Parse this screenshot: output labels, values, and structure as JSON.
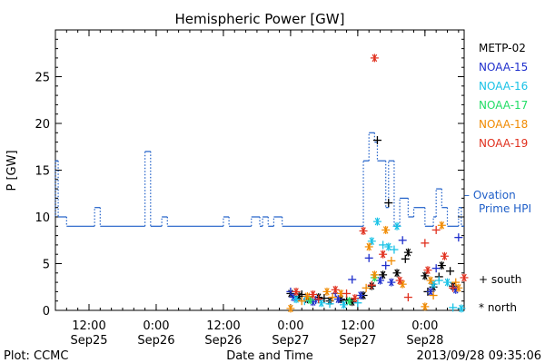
{
  "chart_data": {
    "type": "scatter",
    "title": "Hemispheric Power [GW]",
    "xlabel": "Date and Time",
    "ylabel": "P [GW]",
    "xlim": [
      "2013-09-25T06:00",
      "2013-09-28T07:00"
    ],
    "ylim": [
      0,
      30
    ],
    "x_ticks": [
      {
        "at": "2013-09-25T12:00",
        "time": "12:00",
        "day": "Sep25"
      },
      {
        "at": "2013-09-26T00:00",
        "time": "0:00",
        "day": "Sep26"
      },
      {
        "at": "2013-09-26T12:00",
        "time": "12:00",
        "day": "Sep26"
      },
      {
        "at": "2013-09-27T00:00",
        "time": "0:00",
        "day": "Sep27"
      },
      {
        "at": "2013-09-27T12:00",
        "time": "12:00",
        "day": "Sep27"
      },
      {
        "at": "2013-09-28T00:00",
        "time": "0:00",
        "day": "Sep28"
      }
    ],
    "y_ticks": [
      0,
      5,
      10,
      15,
      20,
      25
    ],
    "footer_left": "Plot: CCMC",
    "footer_right": "2013/09/28 09:35:06",
    "satellites": [
      {
        "name": "METP-02",
        "color": "#000000"
      },
      {
        "name": "NOAA-15",
        "color": "#1f2fcc"
      },
      {
        "name": "NOAA-16",
        "color": "#19c2e6"
      },
      {
        "name": "NOAA-17",
        "color": "#22dd66"
      },
      {
        "name": "NOAA-18",
        "color": "#f08a00"
      },
      {
        "name": "NOAA-19",
        "color": "#e0301e"
      }
    ],
    "ovation": {
      "label_line1": "– Ovation",
      "label_line2": "Prime HPI",
      "color": "#1f5fc8",
      "steps": [
        [
          "2013-09-25T06:00",
          16
        ],
        [
          "2013-09-25T06:30",
          10
        ],
        [
          "2013-09-25T08:00",
          9
        ],
        [
          "2013-09-25T13:00",
          11
        ],
        [
          "2013-09-25T14:00",
          9
        ],
        [
          "2013-09-25T22:00",
          17
        ],
        [
          "2013-09-25T23:00",
          9
        ],
        [
          "2013-09-26T01:00",
          10
        ],
        [
          "2013-09-26T02:00",
          9
        ],
        [
          "2013-09-26T12:00",
          10
        ],
        [
          "2013-09-26T13:00",
          9
        ],
        [
          "2013-09-26T17:00",
          10
        ],
        [
          "2013-09-26T18:30",
          9
        ],
        [
          "2013-09-26T19:00",
          10
        ],
        [
          "2013-09-26T20:00",
          9
        ],
        [
          "2013-09-26T21:00",
          10
        ],
        [
          "2013-09-26T22:30",
          9
        ],
        [
          "2013-09-27T13:00",
          16
        ],
        [
          "2013-09-27T14:00",
          19
        ],
        [
          "2013-09-27T15:00",
          18
        ],
        [
          "2013-09-27T15:30",
          16
        ],
        [
          "2013-09-27T17:00",
          11
        ],
        [
          "2013-09-27T17:30",
          16
        ],
        [
          "2013-09-27T18:30",
          9
        ],
        [
          "2013-09-27T19:30",
          12
        ],
        [
          "2013-09-27T21:00",
          10
        ],
        [
          "2013-09-27T22:00",
          11
        ],
        [
          "2013-09-28T00:00",
          9
        ],
        [
          "2013-09-28T01:30",
          10
        ],
        [
          "2013-09-28T02:00",
          13
        ],
        [
          "2013-09-28T03:00",
          11
        ],
        [
          "2013-09-28T04:00",
          9
        ],
        [
          "2013-09-28T06:00",
          11
        ],
        [
          "2013-09-28T06:30",
          9
        ],
        [
          "2013-09-28T07:00",
          9
        ]
      ]
    },
    "markers": {
      "south_label": "+ south",
      "north_label": "* north"
    },
    "series": [
      {
        "satellite": "METP-02",
        "hemisphere": "north",
        "points": [
          [
            "2013-09-27T00:00",
            1.8
          ],
          [
            "2013-09-27T01:30",
            1.5
          ],
          [
            "2013-09-27T03:00",
            1.2
          ],
          [
            "2013-09-27T05:00",
            1.4
          ],
          [
            "2013-09-27T07:00",
            1.0
          ],
          [
            "2013-09-27T09:00",
            1.2
          ],
          [
            "2013-09-27T11:00",
            0.9
          ],
          [
            "2013-09-27T13:00",
            1.6
          ],
          [
            "2013-09-27T14:30",
            2.6
          ],
          [
            "2013-09-27T16:30",
            3.8
          ],
          [
            "2013-09-27T19:00",
            4.0
          ],
          [
            "2013-09-27T21:00",
            6.2
          ],
          [
            "2013-09-28T00:00",
            3.7
          ],
          [
            "2013-09-28T01:30",
            2.5
          ],
          [
            "2013-09-28T03:00",
            4.8
          ],
          [
            "2013-09-28T05:00",
            2.6
          ]
        ]
      },
      {
        "satellite": "METP-02",
        "hemisphere": "south",
        "points": [
          [
            "2013-09-27T02:00",
            1.7
          ],
          [
            "2013-09-27T06:00",
            1.3
          ],
          [
            "2013-09-27T10:00",
            1.1
          ],
          [
            "2013-09-27T15:30",
            18.2
          ],
          [
            "2013-09-27T17:30",
            11.5
          ],
          [
            "2013-09-27T20:30",
            5.5
          ],
          [
            "2013-09-28T00:30",
            2.0
          ],
          [
            "2013-09-28T02:30",
            3.6
          ],
          [
            "2013-09-28T04:30",
            4.2
          ]
        ]
      },
      {
        "satellite": "NOAA-15",
        "hemisphere": "north",
        "points": [
          [
            "2013-09-27T00:30",
            1.4
          ],
          [
            "2013-09-27T04:00",
            0.9
          ],
          [
            "2013-09-27T08:30",
            1.2
          ],
          [
            "2013-09-27T12:30",
            1.6
          ],
          [
            "2013-09-27T16:00",
            3.2
          ],
          [
            "2013-09-27T18:00",
            3.0
          ],
          [
            "2013-09-28T01:00",
            2.0
          ],
          [
            "2013-09-28T05:30",
            2.2
          ]
        ]
      },
      {
        "satellite": "NOAA-15",
        "hemisphere": "south",
        "points": [
          [
            "2013-09-27T00:00",
            2.0
          ],
          [
            "2013-09-27T04:30",
            1.1
          ],
          [
            "2013-09-27T08:00",
            1.8
          ],
          [
            "2013-09-27T11:00",
            3.3
          ],
          [
            "2013-09-27T14:00",
            5.6
          ],
          [
            "2013-09-27T17:00",
            4.8
          ],
          [
            "2013-09-27T20:00",
            7.5
          ],
          [
            "2013-09-28T02:00",
            4.5
          ],
          [
            "2013-09-28T06:00",
            7.8
          ]
        ]
      },
      {
        "satellite": "NOAA-16",
        "hemisphere": "north",
        "points": [
          [
            "2013-09-27T01:00",
            1.2
          ],
          [
            "2013-09-27T05:30",
            0.8
          ],
          [
            "2013-09-27T09:30",
            0.6
          ],
          [
            "2013-09-27T14:30",
            7.4
          ],
          [
            "2013-09-27T15:30",
            9.5
          ],
          [
            "2013-09-27T17:30",
            6.8
          ],
          [
            "2013-09-27T19:00",
            9.0
          ],
          [
            "2013-09-28T01:30",
            2.8
          ],
          [
            "2013-09-28T04:00",
            3.0
          ],
          [
            "2013-09-28T06:30",
            0.2
          ]
        ]
      },
      {
        "satellite": "NOAA-16",
        "hemisphere": "south",
        "points": [
          [
            "2013-09-27T02:30",
            1.0
          ],
          [
            "2013-09-27T07:00",
            0.7
          ],
          [
            "2013-09-27T12:00",
            0.8
          ],
          [
            "2013-09-27T16:30",
            7.0
          ],
          [
            "2013-09-27T18:30",
            6.5
          ],
          [
            "2013-09-28T02:30",
            3.2
          ],
          [
            "2013-09-28T05:00",
            0.3
          ]
        ]
      },
      {
        "satellite": "NOAA-17",
        "hemisphere": "north",
        "points": [
          [
            "2013-09-27T03:30",
            1.1
          ],
          [
            "2013-09-27T10:30",
            1.0
          ],
          [
            "2013-09-27T15:00",
            3.5
          ]
        ]
      },
      {
        "satellite": "NOAA-18",
        "hemisphere": "north",
        "points": [
          [
            "2013-09-27T00:00",
            0.2
          ],
          [
            "2013-09-27T03:00",
            1.5
          ],
          [
            "2013-09-27T06:30",
            2.0
          ],
          [
            "2013-09-27T09:00",
            1.8
          ],
          [
            "2013-09-27T14:00",
            6.8
          ],
          [
            "2013-09-27T15:00",
            3.8
          ],
          [
            "2013-09-27T17:00",
            8.6
          ],
          [
            "2013-09-27T20:00",
            2.8
          ],
          [
            "2013-09-28T00:00",
            0.4
          ],
          [
            "2013-09-28T01:00",
            3.2
          ],
          [
            "2013-09-28T03:00",
            9.1
          ],
          [
            "2013-09-28T06:00",
            2.4
          ]
        ]
      },
      {
        "satellite": "NOAA-18",
        "hemisphere": "south",
        "points": [
          [
            "2013-09-27T02:00",
            1.0
          ],
          [
            "2013-09-27T07:30",
            1.4
          ],
          [
            "2013-09-27T13:30",
            2.4
          ],
          [
            "2013-09-27T18:00",
            5.3
          ],
          [
            "2013-09-28T01:30",
            1.6
          ],
          [
            "2013-09-28T05:30",
            3.0
          ]
        ]
      },
      {
        "satellite": "NOAA-19",
        "hemisphere": "north",
        "points": [
          [
            "2013-09-27T01:00",
            2.0
          ],
          [
            "2013-09-27T04:00",
            1.7
          ],
          [
            "2013-09-27T08:00",
            2.2
          ],
          [
            "2013-09-27T11:30",
            1.3
          ],
          [
            "2013-09-27T13:00",
            8.5
          ],
          [
            "2013-09-27T15:00",
            27.0
          ],
          [
            "2013-09-27T16:30",
            6.0
          ],
          [
            "2013-09-27T19:30",
            3.2
          ],
          [
            "2013-09-28T00:30",
            4.3
          ],
          [
            "2013-09-28T03:30",
            5.8
          ],
          [
            "2013-09-28T07:00",
            3.5
          ]
        ]
      },
      {
        "satellite": "NOAA-19",
        "hemisphere": "south",
        "points": [
          [
            "2013-09-27T05:00",
            1.2
          ],
          [
            "2013-09-27T10:00",
            1.8
          ],
          [
            "2013-09-27T14:30",
            2.7
          ],
          [
            "2013-09-27T21:00",
            1.4
          ],
          [
            "2013-09-28T00:00",
            7.2
          ],
          [
            "2013-09-28T02:00",
            8.6
          ],
          [
            "2013-09-28T05:00",
            2.4
          ]
        ]
      }
    ]
  }
}
